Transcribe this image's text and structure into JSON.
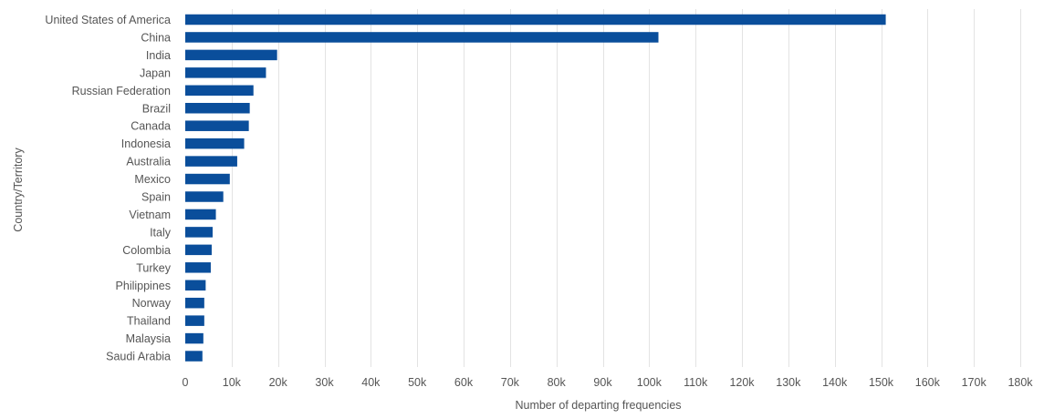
{
  "chart_data": {
    "type": "bar",
    "orientation": "horizontal",
    "xlabel": "Number of departing frequencies",
    "ylabel": "Country/Territory",
    "xlim": [
      0,
      180000
    ],
    "x_ticks": [
      0,
      10000,
      20000,
      30000,
      40000,
      50000,
      60000,
      70000,
      80000,
      90000,
      100000,
      110000,
      120000,
      130000,
      140000,
      150000,
      160000,
      170000,
      180000
    ],
    "x_tick_labels": [
      "0",
      "10k",
      "20k",
      "30k",
      "40k",
      "50k",
      "60k",
      "70k",
      "80k",
      "90k",
      "100k",
      "110k",
      "120k",
      "130k",
      "140k",
      "150k",
      "160k",
      "170k",
      "180k"
    ],
    "grid": "vertical",
    "bar_color": "#0a4e9b",
    "categories": [
      "United States of America",
      "China",
      "India",
      "Japan",
      "Russian Federation",
      "Brazil",
      "Canada",
      "Indonesia",
      "Australia",
      "Mexico",
      "Spain",
      "Vietnam",
      "Italy",
      "Colombia",
      "Turkey",
      "Philippines",
      "Norway",
      "Thailand",
      "Malaysia",
      "Saudi Arabia"
    ],
    "values": [
      151000,
      102000,
      19800,
      17400,
      14700,
      13900,
      13700,
      12700,
      11200,
      9600,
      8200,
      6600,
      5900,
      5700,
      5500,
      4400,
      4100,
      4100,
      3900,
      3700
    ]
  }
}
